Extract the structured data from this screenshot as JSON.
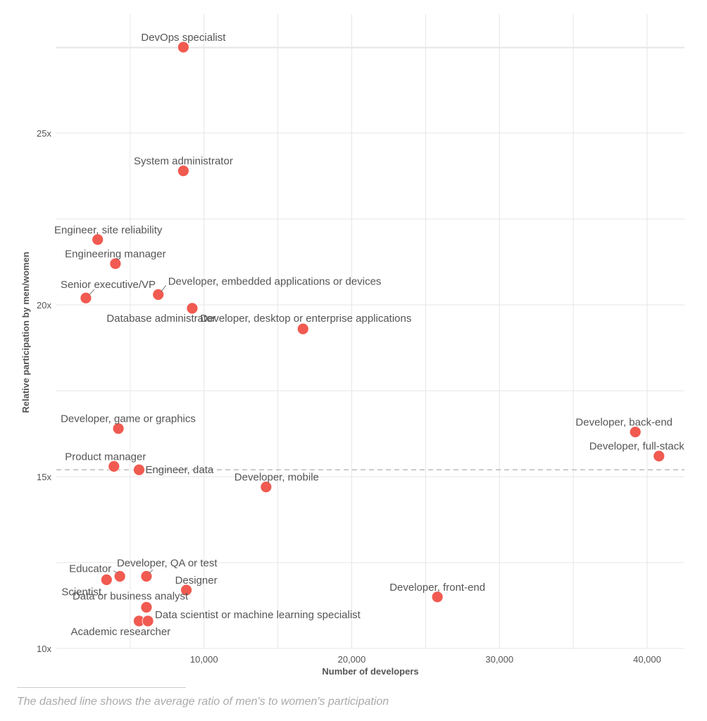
{
  "chart_data": {
    "type": "scatter",
    "xlabel": "Number of developers",
    "ylabel": "Relative participation by men/women",
    "xlim": [
      0,
      43000
    ],
    "ylim": [
      10,
      27.5
    ],
    "x_ticks": [
      {
        "value": 10000,
        "label": "10,000"
      },
      {
        "value": 20000,
        "label": "20,000"
      },
      {
        "value": 30000,
        "label": "30,000"
      },
      {
        "value": 40000,
        "label": "40,000"
      }
    ],
    "y_ticks": [
      {
        "value": 10,
        "label": "10x"
      },
      {
        "value": 15,
        "label": "15x"
      },
      {
        "value": 20,
        "label": "20x"
      },
      {
        "value": 25,
        "label": "25x"
      }
    ],
    "grid": true,
    "average_line": 15.2,
    "color": "#f15a50",
    "points": [
      {
        "label": "DevOps specialist",
        "x": 8600,
        "y": 27.5
      },
      {
        "label": "System administrator",
        "x": 8600,
        "y": 23.9
      },
      {
        "label": "Engineer, site reliability",
        "x": 2800,
        "y": 21.9
      },
      {
        "label": "Engineering manager",
        "x": 4000,
        "y": 21.2
      },
      {
        "label": "Senior executive/VP",
        "x": 2000,
        "y": 20.2
      },
      {
        "label": "Developer, embedded applications or devices",
        "x": 6900,
        "y": 20.3
      },
      {
        "label": "Database administrator",
        "x": 9200,
        "y": 19.9
      },
      {
        "label": "Developer, desktop or enterprise applications",
        "x": 16700,
        "y": 19.3
      },
      {
        "label": "Developer, game or graphics",
        "x": 4200,
        "y": 16.4
      },
      {
        "label": "Developer, back-end",
        "x": 39200,
        "y": 16.3
      },
      {
        "label": "Developer, full-stack",
        "x": 40800,
        "y": 15.6
      },
      {
        "label": "Product manager",
        "x": 3900,
        "y": 15.3
      },
      {
        "label": "Engineer, data",
        "x": 5600,
        "y": 15.2
      },
      {
        "label": "Developer, mobile",
        "x": 14200,
        "y": 14.7
      },
      {
        "label": "Educator",
        "x": 4300,
        "y": 12.1
      },
      {
        "label": "Developer, QA or test",
        "x": 6100,
        "y": 12.1
      },
      {
        "label": "Scientist",
        "x": 3400,
        "y": 12.0
      },
      {
        "label": "Designer",
        "x": 8800,
        "y": 11.7
      },
      {
        "label": "Developer, front-end",
        "x": 25800,
        "y": 11.5
      },
      {
        "label": "Data or business analyst",
        "x": 6100,
        "y": 11.2
      },
      {
        "label": "Academic researcher",
        "x": 5600,
        "y": 10.8
      },
      {
        "label": "Data scientist or machine learning specialist",
        "x": 6200,
        "y": 10.8
      }
    ]
  },
  "footnote": "The dashed line shows the average ratio of men's to women's participation"
}
